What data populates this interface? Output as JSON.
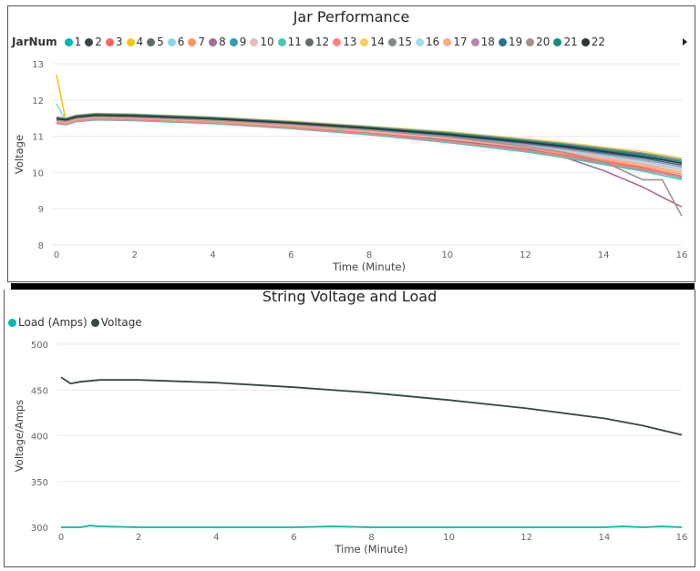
{
  "top": {
    "title": "Jar Performance",
    "legend_title": "JarNum",
    "legend_more_icon": "triangle-right"
  },
  "bottom": {
    "title": "String Voltage and Load"
  },
  "chart_data": [
    {
      "type": "line",
      "title": "Jar Performance",
      "xlabel": "Time (Minute)",
      "ylabel": "Voltage",
      "xlim": [
        0,
        16
      ],
      "ylim": [
        8,
        13
      ],
      "xticks": [
        "0",
        "2",
        "4",
        "6",
        "8",
        "10",
        "12",
        "14",
        "16"
      ],
      "yticks": [
        "8",
        "9",
        "10",
        "11",
        "12",
        "13"
      ],
      "grid": true,
      "legend": "top-left",
      "x": [
        0,
        0.25,
        0.5,
        1,
        2,
        4,
        6,
        8,
        10,
        12,
        13,
        14,
        15,
        15.5,
        16
      ],
      "series": [
        {
          "name": "1",
          "color": "#01B8AA",
          "values": [
            11.36,
            11.33,
            11.41,
            11.46,
            11.44,
            11.36,
            11.23,
            11.06,
            10.85,
            10.6,
            10.44,
            10.26,
            10.08,
            9.97,
            9.85
          ]
        },
        {
          "name": "2",
          "color": "#374649",
          "values": [
            11.48,
            11.45,
            11.53,
            11.58,
            11.56,
            11.48,
            11.37,
            11.22,
            11.05,
            10.84,
            10.72,
            10.58,
            10.44,
            10.35,
            10.25
          ]
        },
        {
          "name": "3",
          "color": "#FD625E",
          "values": [
            11.38,
            11.35,
            11.43,
            11.48,
            11.46,
            11.38,
            11.24,
            11.08,
            10.88,
            10.63,
            10.48,
            10.3,
            10.13,
            10.01,
            9.9
          ]
        },
        {
          "name": "4",
          "color": "#F2C80F",
          "values": [
            12.7,
            11.37,
            11.45,
            11.5,
            11.48,
            11.4,
            11.28,
            11.12,
            10.93,
            10.69,
            10.55,
            10.38,
            10.22,
            10.11,
            10.0
          ]
        },
        {
          "name": "5",
          "color": "#5F6B6D",
          "values": [
            11.5,
            11.47,
            11.55,
            11.6,
            11.58,
            11.5,
            11.38,
            11.24,
            11.08,
            10.87,
            10.76,
            10.62,
            10.49,
            10.39,
            10.3
          ]
        },
        {
          "name": "6",
          "color": "#8AD4EB",
          "values": [
            11.9,
            11.4,
            11.49,
            11.54,
            11.52,
            11.44,
            11.31,
            11.16,
            10.98,
            10.75,
            10.62,
            10.46,
            10.31,
            10.2,
            10.1
          ]
        },
        {
          "name": "7",
          "color": "#FE9666",
          "values": [
            11.39,
            11.36,
            11.44,
            11.49,
            11.47,
            11.39,
            11.26,
            11.1,
            10.9,
            10.66,
            10.51,
            10.34,
            10.17,
            10.06,
            9.95
          ]
        },
        {
          "name": "8",
          "color": "#A66999",
          "values": [
            11.4,
            11.37,
            11.45,
            11.5,
            11.48,
            11.4,
            11.27,
            11.1,
            10.9,
            10.66,
            10.42,
            10.05,
            9.6,
            9.32,
            9.05
          ]
        },
        {
          "name": "9",
          "color": "#3599B8",
          "values": [
            11.47,
            11.44,
            11.52,
            11.57,
            11.55,
            11.47,
            11.35,
            11.2,
            11.03,
            10.81,
            10.69,
            10.54,
            10.4,
            10.3,
            10.2
          ]
        },
        {
          "name": "10",
          "color": "#DFBFBF",
          "values": [
            11.42,
            11.39,
            11.47,
            11.52,
            11.5,
            11.42,
            11.3,
            11.14,
            10.95,
            10.72,
            10.58,
            10.42,
            10.26,
            10.16,
            10.05
          ]
        },
        {
          "name": "11",
          "color": "#4AC5BB",
          "values": [
            11.35,
            11.32,
            11.4,
            11.45,
            11.43,
            11.35,
            11.21,
            11.04,
            10.83,
            10.57,
            10.41,
            10.22,
            10.04,
            9.92,
            9.8
          ]
        },
        {
          "name": "12",
          "color": "#5F6B6D",
          "values": [
            11.51,
            11.48,
            11.56,
            11.61,
            11.59,
            11.51,
            11.4,
            11.26,
            11.1,
            10.9,
            10.79,
            10.66,
            10.53,
            10.44,
            10.35
          ]
        },
        {
          "name": "13",
          "color": "#FB8281",
          "values": [
            11.37,
            11.34,
            11.42,
            11.47,
            11.45,
            11.37,
            11.23,
            11.07,
            10.86,
            10.61,
            10.45,
            10.27,
            10.09,
            9.98,
            9.87
          ]
        },
        {
          "name": "14",
          "color": "#F4D25A",
          "values": [
            11.53,
            11.5,
            11.58,
            11.63,
            11.61,
            11.53,
            11.42,
            11.28,
            11.13,
            10.93,
            10.83,
            10.7,
            10.58,
            10.49,
            10.4
          ]
        },
        {
          "name": "15",
          "color": "#7F898A",
          "values": [
            11.52,
            11.49,
            11.57,
            11.62,
            11.6,
            11.52,
            11.4,
            11.26,
            11.1,
            10.9,
            10.79,
            10.66,
            10.53,
            10.44,
            10.35
          ]
        },
        {
          "name": "16",
          "color": "#A4DDEE",
          "values": [
            11.49,
            11.46,
            11.54,
            11.59,
            11.57,
            11.49,
            11.37,
            11.22,
            11.05,
            10.84,
            10.72,
            10.58,
            10.44,
            10.35,
            10.25
          ]
        },
        {
          "name": "17",
          "color": "#FDAB89",
          "values": [
            11.41,
            11.38,
            11.46,
            11.51,
            11.49,
            11.41,
            11.28,
            11.12,
            10.93,
            10.69,
            10.55,
            10.38,
            10.22,
            10.11,
            10.0
          ]
        },
        {
          "name": "18",
          "color": "#B687AC",
          "values": [
            11.45,
            11.42,
            11.5,
            11.55,
            11.53,
            11.45,
            11.33,
            11.18,
            11.0,
            10.78,
            10.65,
            10.5,
            10.35,
            10.25,
            10.15
          ]
        },
        {
          "name": "19",
          "color": "#28738A",
          "values": [
            11.46,
            11.43,
            11.51,
            11.56,
            11.54,
            11.46,
            11.35,
            11.2,
            11.03,
            10.81,
            10.69,
            10.54,
            10.4,
            10.3,
            10.2
          ]
        },
        {
          "name": "20",
          "color": "#A78F8F",
          "values": [
            11.44,
            11.41,
            11.49,
            11.54,
            11.52,
            11.44,
            11.32,
            11.17,
            10.98,
            10.72,
            10.55,
            10.3,
            9.8,
            9.8,
            8.8
          ]
        },
        {
          "name": "21",
          "color": "#168980",
          "values": [
            11.5,
            11.47,
            11.55,
            11.6,
            11.58,
            11.5,
            11.38,
            11.24,
            11.08,
            10.87,
            10.76,
            10.62,
            10.49,
            10.39,
            10.3
          ]
        },
        {
          "name": "22",
          "color": "#293537",
          "values": [
            11.48,
            11.45,
            11.53,
            11.58,
            11.56,
            11.48,
            11.37,
            11.22,
            11.05,
            10.84,
            10.72,
            10.58,
            10.44,
            10.35,
            10.25
          ]
        }
      ]
    },
    {
      "type": "line",
      "title": "String Voltage and Load",
      "xlabel": "Time (Minute)",
      "ylabel": "Voltage/Amps",
      "xlim": [
        0,
        16
      ],
      "ylim": [
        300,
        500
      ],
      "xticks": [
        "0",
        "2",
        "4",
        "6",
        "8",
        "10",
        "12",
        "14",
        "16"
      ],
      "yticks": [
        "300",
        "350",
        "400",
        "450",
        "500"
      ],
      "grid": true,
      "legend": "top-left",
      "series": [
        {
          "name": "Load (Amps)",
          "color": "#01B8AA",
          "x": [
            0,
            0.5,
            0.75,
            1,
            2,
            3,
            4,
            5,
            6,
            7,
            8,
            9,
            10,
            11,
            12,
            13,
            14,
            14.5,
            15,
            15.5,
            16
          ],
          "values": [
            300,
            300,
            302,
            301,
            300,
            300,
            300,
            300,
            300,
            301,
            300,
            300,
            300,
            300,
            300,
            300,
            300,
            301,
            300,
            301,
            300
          ]
        },
        {
          "name": "Voltage",
          "color": "#374649",
          "x": [
            0,
            0.25,
            0.5,
            1,
            2,
            4,
            6,
            8,
            10,
            12,
            14,
            15,
            15.5,
            16
          ],
          "values": [
            464,
            457,
            459,
            461,
            461,
            458,
            453,
            447,
            439,
            430,
            419,
            411,
            406,
            401
          ]
        }
      ]
    }
  ]
}
